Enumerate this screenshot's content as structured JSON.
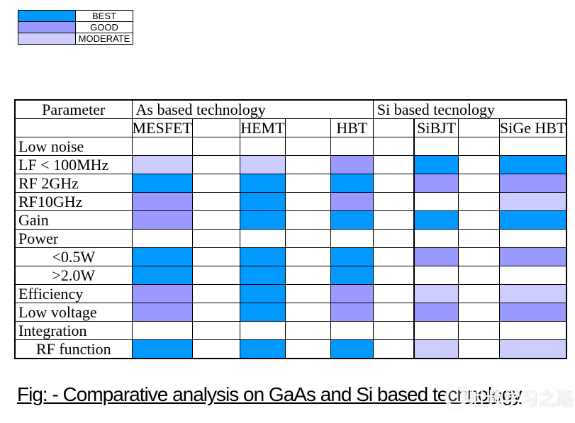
{
  "legend": {
    "items": [
      {
        "key": "best",
        "label": "BEST"
      },
      {
        "key": "good",
        "label": "GOOD"
      },
      {
        "key": "moderate",
        "label": "MODERATE"
      }
    ]
  },
  "colors": {
    "best": "#0099FF",
    "good": "#9999FF",
    "moderate": "#CCCCFF"
  },
  "header": {
    "parameter": "Parameter",
    "as_group": "As based technology",
    "si_group": "Si based tecnology"
  },
  "chart_data": {
    "type": "heatmap",
    "scale_note": "cell fill encodes rating: BEST (blue) / GOOD (medium periwinkle) / MODERATE (light lavender) / blank = none",
    "columns": [
      "MESFET",
      "HEMT",
      "HBT",
      "SiBJT",
      "SiGe HBT"
    ],
    "column_groups": [
      {
        "label": "As based technology",
        "columns": [
          "MESFET",
          "HEMT",
          "HBT"
        ]
      },
      {
        "label": "Si based tecnology",
        "columns": [
          "SiBJT",
          "SiGe HBT"
        ]
      }
    ],
    "rows": [
      {
        "label": "Low noise",
        "indent": false,
        "ratings": [
          "",
          "",
          "",
          "",
          ""
        ]
      },
      {
        "label": "LF < 100MHz",
        "indent": false,
        "ratings": [
          "moderate",
          "moderate",
          "good",
          "best",
          "best"
        ]
      },
      {
        "label": "RF 2GHz",
        "indent": false,
        "ratings": [
          "best",
          "best",
          "best",
          "good",
          "good"
        ]
      },
      {
        "label": "RF10GHz",
        "indent": false,
        "ratings": [
          "good",
          "best",
          "good",
          "",
          "moderate"
        ]
      },
      {
        "label": "Gain",
        "indent": false,
        "ratings": [
          "good",
          "best",
          "best",
          "best",
          "best"
        ]
      },
      {
        "label": "Power",
        "indent": false,
        "ratings": [
          "",
          "",
          "",
          "",
          ""
        ]
      },
      {
        "label": "<0.5W",
        "indent": true,
        "ratings": [
          "best",
          "best",
          "best",
          "good",
          "good"
        ]
      },
      {
        "label": ">2.0W",
        "indent": true,
        "ratings": [
          "best",
          "best",
          "best",
          "",
          ""
        ]
      },
      {
        "label": "Efficiency",
        "indent": false,
        "ratings": [
          "good",
          "best",
          "good",
          "moderate",
          "moderate"
        ]
      },
      {
        "label": "Low voltage",
        "indent": false,
        "ratings": [
          "good",
          "best",
          "good",
          "good",
          "good"
        ]
      },
      {
        "label": "Integration",
        "indent": false,
        "ratings": [
          "",
          "",
          "",
          "",
          ""
        ]
      },
      {
        "label": "RF function",
        "indent": true,
        "ratings": [
          "best",
          "best",
          "best",
          "moderate",
          "moderate"
        ]
      }
    ]
  },
  "caption": {
    "text": "Fig: - Comparative analysis on GaAs and Si based technology"
  },
  "watermark": {
    "text": "射频学习之路"
  }
}
